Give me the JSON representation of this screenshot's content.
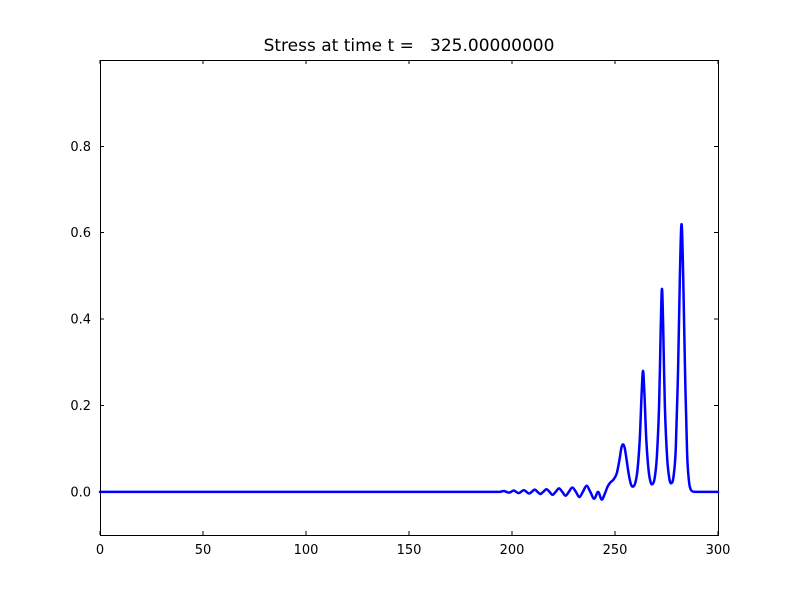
{
  "chart_data": {
    "type": "line",
    "title": "Stress at time t =   325.00000000",
    "xlabel": "",
    "ylabel": "",
    "xlim": [
      0,
      300
    ],
    "ylim": [
      -0.1,
      1.0
    ],
    "xticks": [
      0,
      50,
      100,
      150,
      200,
      250,
      300
    ],
    "xtick_labels": [
      "0",
      "50",
      "100",
      "150",
      "200",
      "250",
      "300"
    ],
    "yticks": [
      0.0,
      0.2,
      0.4,
      0.6,
      0.8
    ],
    "ytick_labels": [
      "0.0",
      "0.2",
      "0.4",
      "0.6",
      "0.8"
    ],
    "grid": false,
    "legend": null,
    "background_color": "#ffffff",
    "axes_color": "#000000",
    "line_color": "#0000ff",
    "line_width": 2.5,
    "series": [
      {
        "name": "stress",
        "points": [
          [
            0,
            0
          ],
          [
            25,
            0
          ],
          [
            50,
            0
          ],
          [
            75,
            0
          ],
          [
            100,
            0
          ],
          [
            125,
            0
          ],
          [
            150,
            0
          ],
          [
            175,
            0
          ],
          [
            188,
            0
          ],
          [
            194,
            0
          ],
          [
            196,
            0.002
          ],
          [
            197.2,
            0
          ],
          [
            198.4,
            -0.002
          ],
          [
            199.6,
            0
          ],
          [
            200.8,
            0.003
          ],
          [
            202,
            0
          ],
          [
            203.2,
            -0.003
          ],
          [
            204.4,
            0
          ],
          [
            205.7,
            0.004
          ],
          [
            207,
            0
          ],
          [
            208.3,
            -0.004
          ],
          [
            209.6,
            0
          ],
          [
            211,
            0.005
          ],
          [
            212.4,
            0
          ],
          [
            213.8,
            -0.005
          ],
          [
            215.2,
            0
          ],
          [
            216.7,
            0.006
          ],
          [
            218.2,
            0
          ],
          [
            219.7,
            -0.007
          ],
          [
            221.2,
            0
          ],
          [
            222.8,
            0.008
          ],
          [
            224.4,
            0
          ],
          [
            226,
            -0.009
          ],
          [
            227.6,
            0
          ],
          [
            229.3,
            0.01
          ],
          [
            231,
            0
          ],
          [
            232.7,
            -0.012
          ],
          [
            234.4,
            0
          ],
          [
            236.2,
            0.014
          ],
          [
            238,
            0
          ],
          [
            239.9,
            -0.016
          ],
          [
            241.8,
            0
          ],
          [
            243.5,
            -0.018
          ],
          [
            245,
            -0.005
          ],
          [
            246.4,
            0.012
          ],
          [
            247.8,
            0.022
          ],
          [
            249.2,
            0.028
          ],
          [
            250.8,
            0.042
          ],
          [
            252.2,
            0.075
          ],
          [
            253.1,
            0.102
          ],
          [
            253.9,
            0.11
          ],
          [
            254.7,
            0.102
          ],
          [
            255.6,
            0.075
          ],
          [
            256.7,
            0.04
          ],
          [
            257.7,
            0.018
          ],
          [
            258.7,
            0.012
          ],
          [
            259.8,
            0.02
          ],
          [
            260.9,
            0.05
          ],
          [
            262,
            0.12
          ],
          [
            262.9,
            0.225
          ],
          [
            263.6,
            0.28
          ],
          [
            264.3,
            0.225
          ],
          [
            265.2,
            0.12
          ],
          [
            266.3,
            0.05
          ],
          [
            267.3,
            0.022
          ],
          [
            268.2,
            0.018
          ],
          [
            269.2,
            0.03
          ],
          [
            270.3,
            0.08
          ],
          [
            271.4,
            0.2
          ],
          [
            272.2,
            0.38
          ],
          [
            272.8,
            0.47
          ],
          [
            273.4,
            0.38
          ],
          [
            274.2,
            0.2
          ],
          [
            275.3,
            0.08
          ],
          [
            276.4,
            0.03
          ],
          [
            277.4,
            0.02
          ],
          [
            278.4,
            0.035
          ],
          [
            279.5,
            0.1
          ],
          [
            280.6,
            0.28
          ],
          [
            281.5,
            0.5
          ],
          [
            282.3,
            0.62
          ],
          [
            283.1,
            0.5
          ],
          [
            284,
            0.28
          ],
          [
            285,
            0.09
          ],
          [
            285.9,
            0.025
          ],
          [
            286.7,
            0.006
          ],
          [
            287.6,
            0.001
          ],
          [
            288.6,
            0
          ],
          [
            290,
            0
          ],
          [
            293,
            0
          ],
          [
            296,
            0
          ],
          [
            300,
            0
          ]
        ]
      }
    ]
  }
}
